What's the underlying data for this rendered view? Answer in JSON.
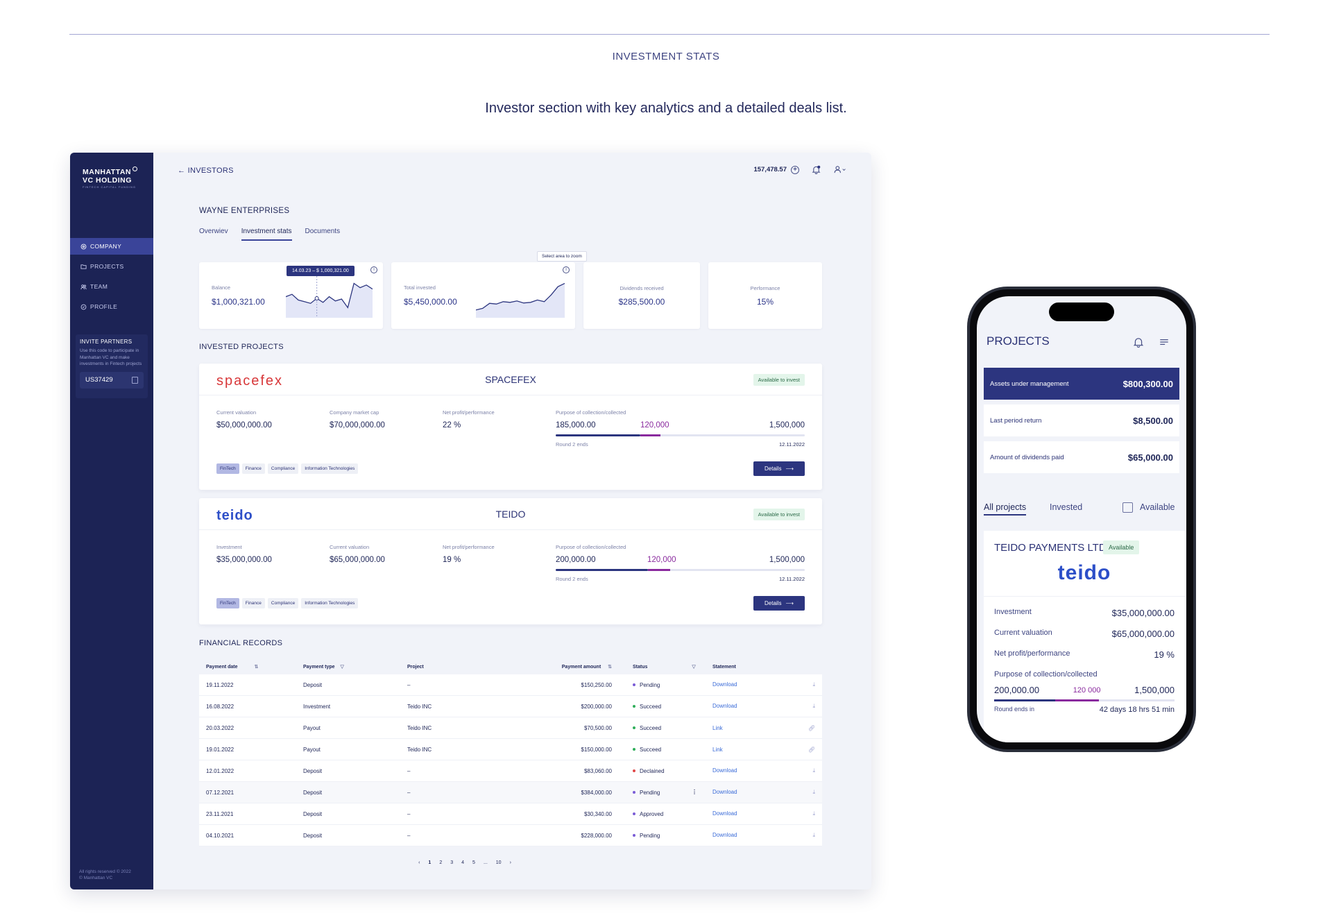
{
  "section": {
    "title": "INVESTMENT STATS",
    "subtitle": "Investor section with key analytics and a detailed deals list."
  },
  "sidebar": {
    "logo": {
      "line1": "MANHATTAN",
      "line2": "VC HOLDING",
      "tagline": "FINTECH CAPITAL FUNDING"
    },
    "items": [
      {
        "label": "COMPANY",
        "icon": "settings-icon",
        "active": true
      },
      {
        "label": "PROJECTS",
        "icon": "folder-icon",
        "active": false
      },
      {
        "label": "TEAM",
        "icon": "team-icon",
        "active": false
      },
      {
        "label": "PROFILE",
        "icon": "profile-icon",
        "active": false
      }
    ],
    "invite": {
      "title": "INVITE PARTNERS",
      "description": "Use this code to participate in Manhattan VC and make investments in Fintech projects",
      "code": "US37429"
    },
    "copyright": [
      "All rights reserved © 2022",
      "© Manhattan VC"
    ]
  },
  "header": {
    "back_label": "← INVESTORS",
    "balance": "157,478.57"
  },
  "company": {
    "name": "WAYNE ENTERPRISES",
    "tabs": [
      "Overwiev",
      "Investment stats",
      "Documents"
    ],
    "active_tab": 1
  },
  "kpis": {
    "balance": {
      "label": "Balance",
      "value": "$1,000,321.00",
      "tooltip": "14.03.23 – $ 1,000,321.00",
      "trend": [
        0.55,
        0.62,
        0.45,
        0.4,
        0.35,
        0.5,
        0.38,
        0.55,
        0.42,
        0.48,
        0.22,
        0.95,
        0.82,
        0.9,
        0.78
      ]
    },
    "total_invested": {
      "label": "Total invested",
      "value": "$5,450,000.00",
      "tooltip": "Select area to zoom",
      "trend": [
        0.15,
        0.2,
        0.35,
        0.33,
        0.4,
        0.38,
        0.42,
        0.36,
        0.38,
        0.45,
        0.4,
        0.6,
        0.85,
        0.95
      ]
    },
    "dividends": {
      "label": "Dividends received",
      "value": "$285,500.00"
    },
    "performance": {
      "label": "Performance",
      "value": "15%"
    }
  },
  "invested_projects": {
    "heading": "INVESTED PROJECTS",
    "items": [
      {
        "brand": "spacefex",
        "brand_color": "#d8383a",
        "name": "SPACEFEX",
        "badge": "Available to invest",
        "fields": [
          {
            "label": "Current valuation",
            "value": "$50,000,000.00"
          },
          {
            "label": "Company market cap",
            "value": "$70,000,000.00"
          },
          {
            "label": "Net profit/performance",
            "value": "22 %"
          }
        ],
        "collection": {
          "label": "Purpose of collection/collected",
          "collected": "185,000.00",
          "highlight": "120,000",
          "goal": "1,500,000",
          "round": "Round 2 ends",
          "date": "12.11.2022",
          "collected_frac": 0.34,
          "highlight_frac": 0.08
        },
        "tags": [
          "FinTech",
          "Finance",
          "Compliance",
          "Information Technologies"
        ],
        "details_label": "Details"
      },
      {
        "brand": "teido",
        "brand_color": "#2d4fc8",
        "name": "TEIDO",
        "badge": "Available to invest",
        "fields": [
          {
            "label": "Investment",
            "value": "$35,000,000.00"
          },
          {
            "label": "Current valuation",
            "value": "$65,000,000.00"
          },
          {
            "label": "Net profit/performance",
            "value": "19 %"
          }
        ],
        "collection": {
          "label": "Purpose of collection/collected",
          "collected": "200,000.00",
          "highlight": "120,000",
          "goal": "1,500,000",
          "round": "Round 2 ends",
          "date": "12.11.2022",
          "collected_frac": 0.37,
          "highlight_frac": 0.09
        },
        "tags": [
          "FinTech",
          "Finance",
          "Compliance",
          "Information Technologies"
        ],
        "details_label": "Details"
      }
    ]
  },
  "financial_records": {
    "heading": "FINANCIAL RECORDS",
    "columns": [
      "Payment date",
      "Payment type",
      "Project",
      "Payment amount",
      "Status",
      "Statement"
    ],
    "rows": [
      {
        "date": "19.11.2022",
        "type": "Deposit",
        "project": "–",
        "amount": "$150,250.00",
        "status": "Pending",
        "status_color": "#7a5cd6",
        "statement": "Download"
      },
      {
        "date": "16.08.2022",
        "type": "Investment",
        "project": "Teido INC",
        "amount": "$200,000.00",
        "status": "Succeed",
        "status_color": "#2fae5a",
        "statement": "Download"
      },
      {
        "date": "20.03.2022",
        "type": "Payout",
        "project": "Teido INC",
        "amount": "$70,500.00",
        "status": "Succeed",
        "status_color": "#2fae5a",
        "statement": "Link"
      },
      {
        "date": "19.01.2022",
        "type": "Payout",
        "project": "Teido INC",
        "amount": "$150,000.00",
        "status": "Succeed",
        "status_color": "#2fae5a",
        "statement": "Link"
      },
      {
        "date": "12.01.2022",
        "type": "Deposit",
        "project": "–",
        "amount": "$83,060.00",
        "status": "Declained",
        "status_color": "#e04848",
        "statement": "Download"
      },
      {
        "date": "07.12.2021",
        "type": "Deposit",
        "project": "–",
        "amount": "$384,000.00",
        "status": "Pending",
        "status_color": "#7a5cd6",
        "statement": "Download"
      },
      {
        "date": "23.11.2021",
        "type": "Deposit",
        "project": "–",
        "amount": "$30,340.00",
        "status": "Approved",
        "status_color": "#7a5cd6",
        "statement": "Download"
      },
      {
        "date": "04.10.2021",
        "type": "Deposit",
        "project": "–",
        "amount": "$228,000.00",
        "status": "Pending",
        "status_color": "#7a5cd6",
        "statement": "Download"
      }
    ],
    "pagination": [
      "1",
      "2",
      "3",
      "4",
      "5",
      "...",
      "10"
    ]
  },
  "phone": {
    "title": "PROJECTS",
    "cards": [
      {
        "label": "Assets under management",
        "value": "$800,300.00"
      },
      {
        "label": "Last period return",
        "value": "$8,500.00"
      },
      {
        "label": "Amount of dividends paid",
        "value": "$65,000.00"
      }
    ],
    "tabs": [
      "All projects",
      "Invested",
      "Available"
    ],
    "project": {
      "name": "TEIDO PAYMENTS LTD",
      "badge": "Available",
      "brand": "teido",
      "rows": [
        {
          "label": "Investment",
          "value": "$35,000,000.00"
        },
        {
          "label": "Current valuation",
          "value": "$65,000,000.00"
        },
        {
          "label": "Net profit/performance",
          "value": "19 %"
        }
      ],
      "collection_label": "Purpose of collection/collected",
      "collected": "200,000.00",
      "highlight": "120 000",
      "goal": "1,500,000",
      "round": "Round ends in",
      "countdown": "42 days 18 hrs 51 min"
    }
  }
}
